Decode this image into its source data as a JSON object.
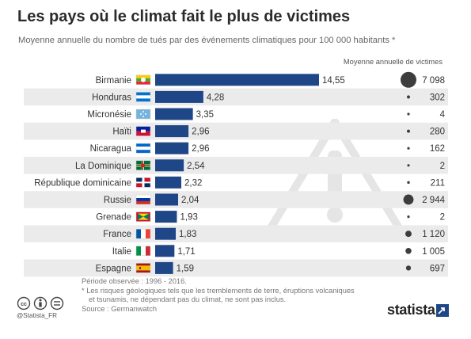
{
  "title": "Les pays où le climat fait le plus de victimes",
  "subtitle": "Moyenne annuelle du nombre de tués par des événements climatiques pour 100 000 habitants *",
  "colors": {
    "bar": "#1f4788",
    "bubble": "#3d3d3d",
    "stripe": "#ebebeb",
    "watermark": "#e6e6e6"
  },
  "chart_data": {
    "type": "bar",
    "orientation": "horizontal",
    "categories": [
      "Birmanie",
      "Honduras",
      "Micronésie",
      "Haïti",
      "Nicaragua",
      "La Dominique",
      "République dominicaine",
      "Russie",
      "Grenade",
      "France",
      "Italie",
      "Espagne"
    ],
    "values": [
      14.55,
      4.28,
      3.35,
      2.96,
      2.96,
      2.54,
      2.32,
      2.04,
      1.93,
      1.83,
      1.71,
      1.59
    ],
    "value_labels": [
      "14,55",
      "4,28",
      "3,35",
      "2,96",
      "2,96",
      "2,54",
      "2,32",
      "2,04",
      "1,93",
      "1,83",
      "1,71",
      "1,59"
    ],
    "bubble_header": "Moyenne annuelle de victimes",
    "bubble_values": [
      7098,
      302,
      4,
      280,
      162,
      2,
      211,
      2944,
      2,
      1120,
      1005,
      697
    ],
    "bubble_labels": [
      "7 098",
      "302",
      "4",
      "280",
      "162",
      "2",
      "211",
      "2 944",
      "2",
      "1 120",
      "1 005",
      "697"
    ],
    "flags": [
      "myanmar-flag",
      "honduras-flag",
      "micronesia-flag",
      "haiti-flag",
      "nicaragua-flag",
      "dominica-flag",
      "dominican-republic-flag",
      "russia-flag",
      "grenada-flag",
      "france-flag",
      "italy-flag",
      "spain-flag"
    ],
    "grid": false,
    "legend": "none"
  },
  "footer": {
    "period": "Période observée : 1996 - 2016.",
    "note_line1": "* Les risques géologiques tels que les tremblements de terre, éruptions volcaniques",
    "note_line2": "et tsunamis, ne dépendant pas du climat, ne sont pas inclus.",
    "source": "Source : Germanwatch",
    "credit": "@Statista_FR",
    "brand": "statista"
  }
}
